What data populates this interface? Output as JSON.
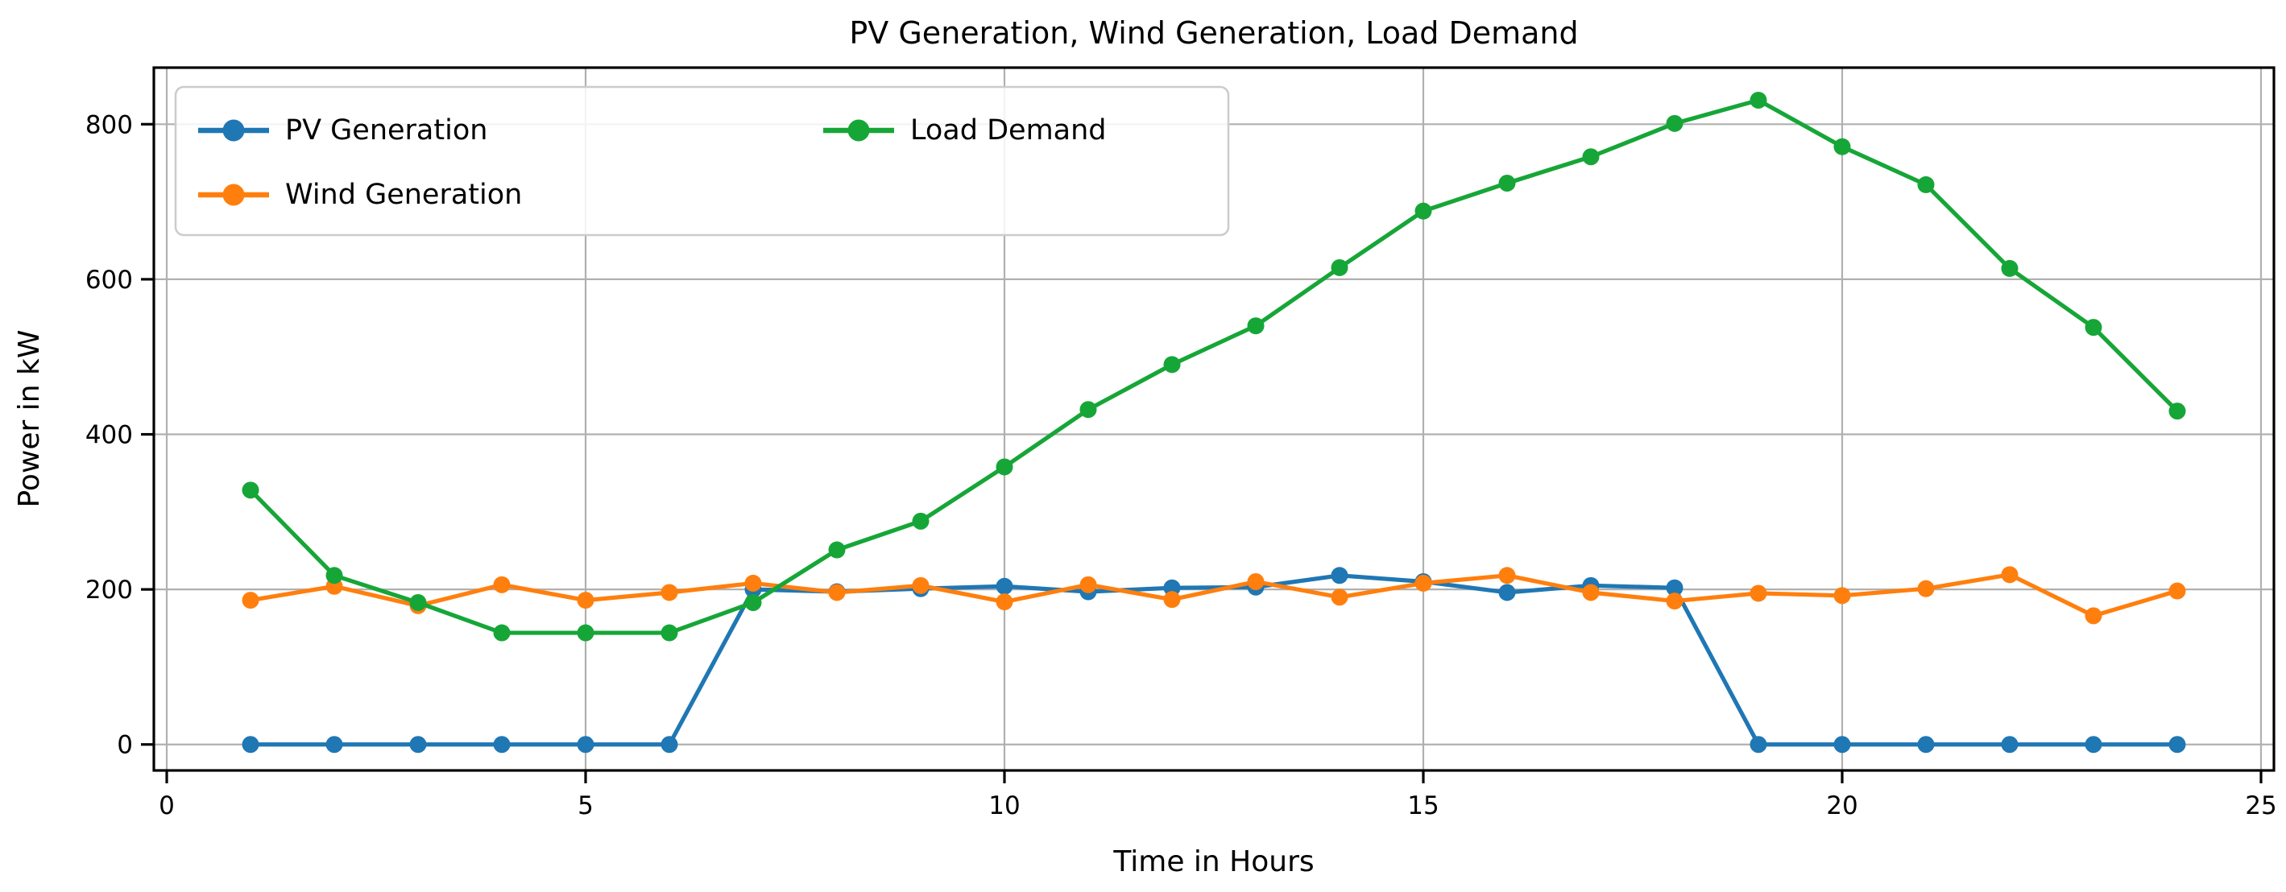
{
  "chart_data": {
    "type": "line",
    "title": "PV Generation, Wind Generation, Load Demand",
    "xlabel": "Time in Hours",
    "ylabel": "Power in kW",
    "x": [
      1,
      2,
      3,
      4,
      5,
      6,
      7,
      8,
      9,
      10,
      11,
      12,
      13,
      14,
      15,
      16,
      17,
      18,
      19,
      20,
      21,
      22,
      23,
      24
    ],
    "series": [
      {
        "name": "PV Generation",
        "color": "#1f77b4",
        "values": [
          0,
          0,
          0,
          0,
          0,
          0,
          200,
          197,
          201,
          204,
          197,
          202,
          203,
          218,
          210,
          196,
          205,
          202,
          0,
          0,
          0,
          0,
          0,
          0
        ]
      },
      {
        "name": "Wind Generation",
        "color": "#ff7f0e",
        "values": [
          186,
          204,
          179,
          206,
          186,
          196,
          208,
          196,
          205,
          184,
          206,
          187,
          210,
          190,
          208,
          218,
          196,
          185,
          195,
          192,
          201,
          219,
          166,
          198
        ]
      },
      {
        "name": "Load Demand",
        "color": "#16a637",
        "values": [
          328,
          218,
          183,
          144,
          144,
          144,
          183,
          251,
          288,
          358,
          432,
          490,
          540,
          615,
          688,
          724,
          758,
          801,
          831,
          771,
          722,
          614,
          538,
          430
        ]
      }
    ],
    "x_ticks": [
      0,
      5,
      10,
      15,
      20,
      25
    ],
    "y_ticks": [
      0,
      200,
      400,
      600,
      800
    ],
    "xlim": [
      -0.154,
      25.154
    ],
    "ylim": [
      -33.5,
      873
    ],
    "grid": true,
    "grid_color": "#b0b0b0",
    "legend_position": "upper left",
    "legend_columns": 2
  }
}
